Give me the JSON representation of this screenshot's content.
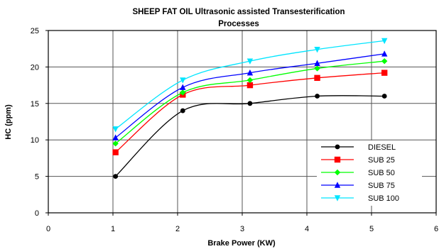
{
  "chart_data": {
    "type": "line",
    "title_line1": "SHEEP FAT OIL Ultrasonic assisted Transesterification",
    "title_line2": "Processes",
    "xlabel": "Brake Power (KW)",
    "ylabel": "HC (ppm)",
    "xlim": [
      0,
      6
    ],
    "ylim": [
      0,
      25
    ],
    "x_ticks": [
      0,
      1,
      2,
      3,
      4,
      5,
      6
    ],
    "y_ticks": [
      0,
      5,
      10,
      15,
      20,
      25
    ],
    "grid": true,
    "legend_position": "lower-right",
    "series": [
      {
        "name": "DIESEL",
        "color": "#000000",
        "marker": "circle",
        "x": [
          1.04,
          2.08,
          3.12,
          4.16,
          5.2
        ],
        "y": [
          5.0,
          14.0,
          15.0,
          16.0,
          16.0
        ]
      },
      {
        "name": "SUB 25",
        "color": "#ff0000",
        "marker": "square",
        "x": [
          1.04,
          2.08,
          3.12,
          4.16,
          5.2
        ],
        "y": [
          8.3,
          16.2,
          17.5,
          18.5,
          19.2
        ]
      },
      {
        "name": "SUB 50",
        "color": "#00ff00",
        "marker": "diamond",
        "x": [
          1.04,
          2.08,
          3.12,
          4.16,
          5.2
        ],
        "y": [
          9.5,
          16.5,
          18.2,
          19.8,
          20.8
        ]
      },
      {
        "name": "SUB 75",
        "color": "#0000ff",
        "marker": "triangle-up",
        "x": [
          1.04,
          2.08,
          3.12,
          4.16,
          5.2
        ],
        "y": [
          10.3,
          17.2,
          19.2,
          20.5,
          21.8
        ]
      },
      {
        "name": "SUB 100",
        "color": "#00e5ff",
        "marker": "triangle-down",
        "x": [
          1.04,
          2.08,
          3.12,
          4.16,
          5.2
        ],
        "y": [
          11.5,
          18.2,
          20.8,
          22.4,
          23.6
        ]
      }
    ]
  }
}
